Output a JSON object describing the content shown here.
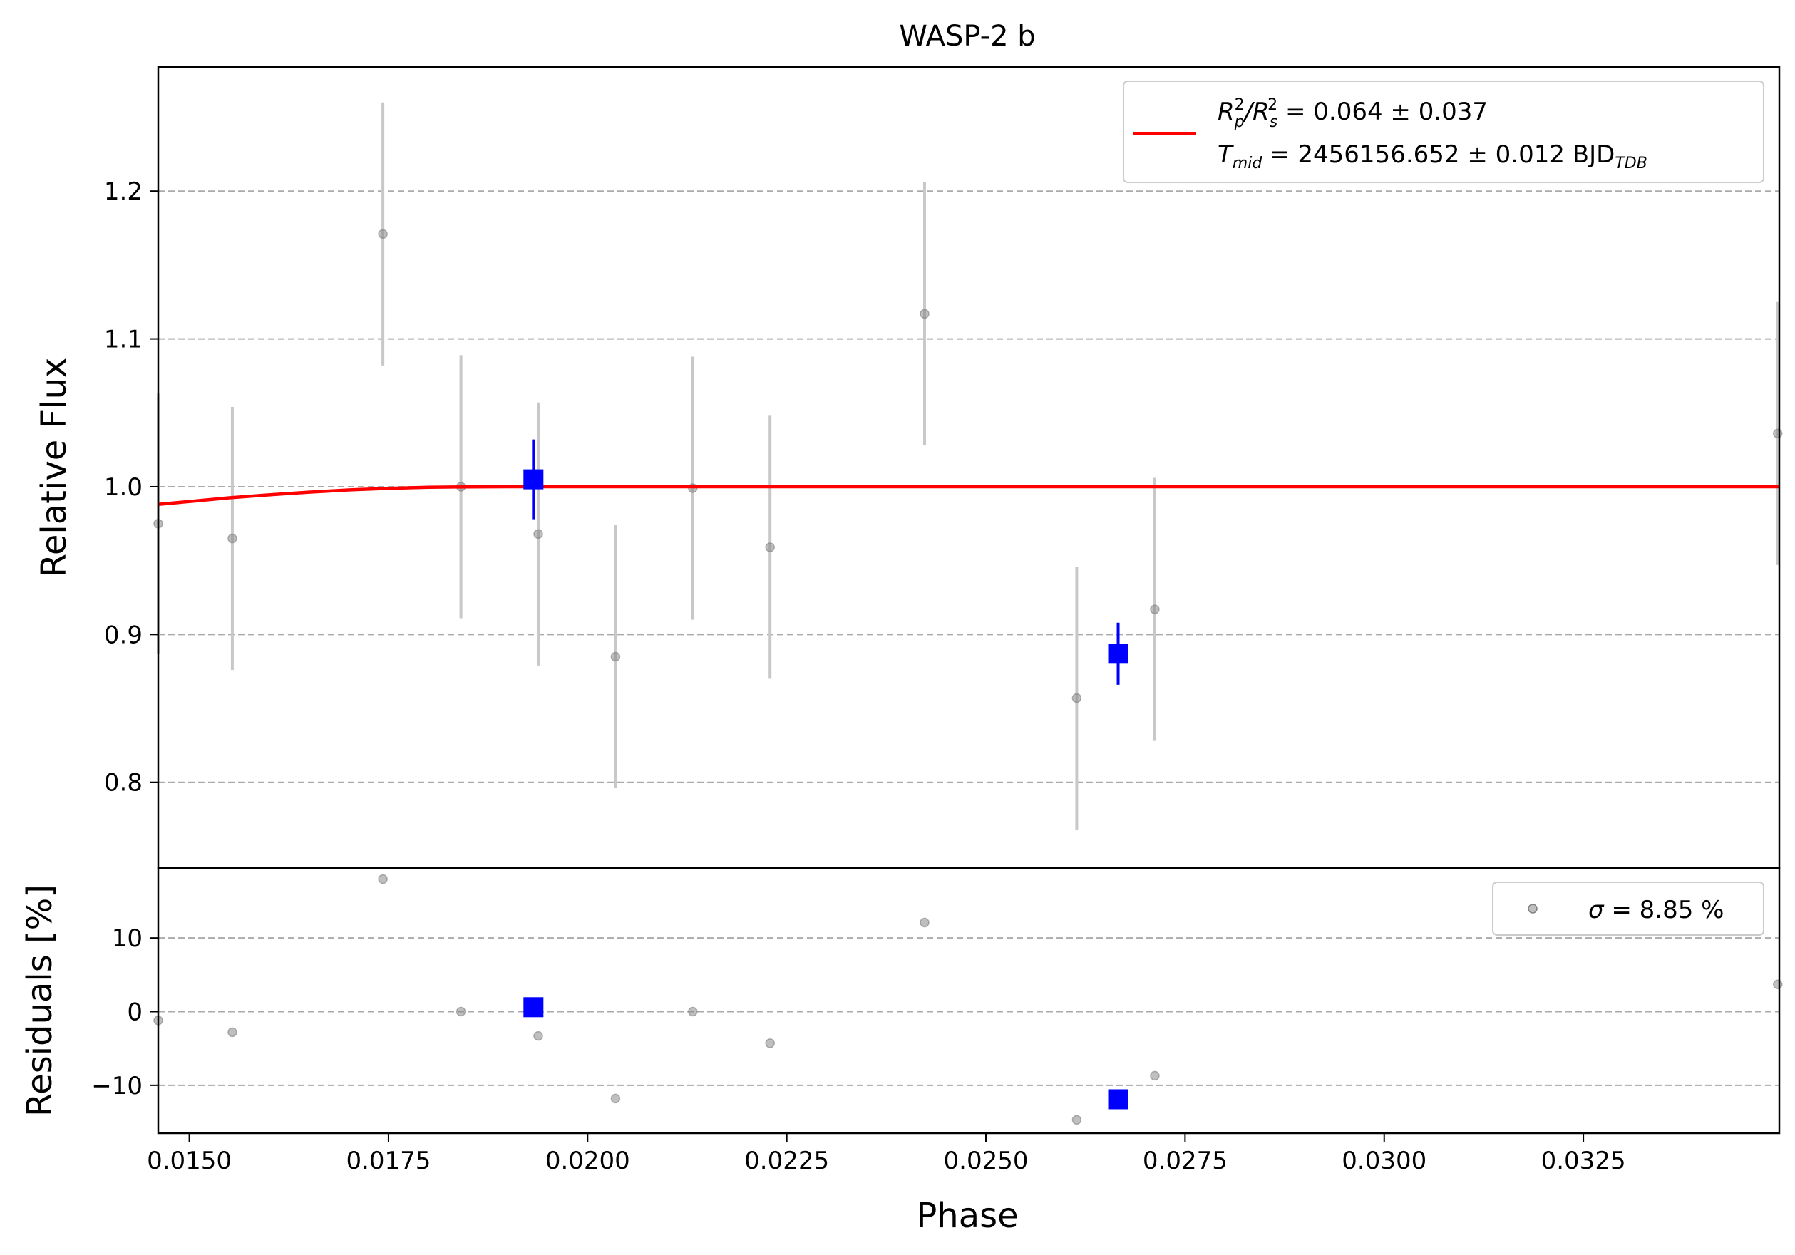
{
  "figure": {
    "title": "WASP-2 b",
    "xlabel": "Phase",
    "colors": {
      "raw_points": "#808080",
      "raw_errorbars": "#c8c8c8",
      "binned_points": "#0000ff",
      "model": "#ff0000",
      "grid": "#aaaaaa"
    }
  },
  "chart_data": [
    {
      "type": "scatter",
      "panel": "main",
      "ylabel": "Relative Flux",
      "xlim": [
        0.01461,
        0.03496
      ],
      "ylim": [
        0.742,
        1.284
      ],
      "xticks": [
        0.015,
        0.0175,
        0.02,
        0.0225,
        0.025,
        0.0275,
        0.03,
        0.0325
      ],
      "xtick_labels": [
        "0.0150",
        "0.0175",
        "0.0200",
        "0.0225",
        "0.0250",
        "0.0275",
        "0.0300",
        "0.0325"
      ],
      "yticks": [
        0.8,
        0.9,
        1.0,
        1.1,
        1.2
      ],
      "ytick_labels": [
        "0.8",
        "0.9",
        "1.0",
        "1.1",
        "1.2"
      ],
      "grid": "horizontal dashed",
      "legend_position": "top-right",
      "legend": {
        "line1_prefix_R": "R",
        "line1_sub_p": "p",
        "line1_sup_p": "2",
        "line1_slash": "/R",
        "line1_sub_s": "s",
        "line1_sup_s": "2",
        "line1_value": " = 0.064 ± 0.037",
        "line2_T": "T",
        "line2_sub": "mid",
        "line2_value": " = 2456156.652 ± 0.012 BJD",
        "line2_unit_sub": "TDB"
      },
      "raw": [
        {
          "x": 0.01461,
          "y": 0.975,
          "err": 0.088
        },
        {
          "x": 0.01554,
          "y": 0.965,
          "err": 0.089
        },
        {
          "x": 0.01743,
          "y": 1.171,
          "err": 0.089
        },
        {
          "x": 0.01841,
          "y": 1.0,
          "err": 0.089
        },
        {
          "x": 0.01938,
          "y": 0.968,
          "err": 0.089
        },
        {
          "x": 0.02035,
          "y": 0.885,
          "err": 0.089
        },
        {
          "x": 0.02132,
          "y": 0.999,
          "err": 0.089
        },
        {
          "x": 0.02229,
          "y": 0.959,
          "err": 0.089
        },
        {
          "x": 0.02423,
          "y": 1.117,
          "err": 0.089
        },
        {
          "x": 0.02614,
          "y": 0.857,
          "err": 0.089
        },
        {
          "x": 0.02712,
          "y": 0.917,
          "err": 0.089
        },
        {
          "x": 0.03494,
          "y": 1.036,
          "err": 0.089
        }
      ],
      "binned": [
        {
          "x": 0.01932,
          "y": 1.005,
          "err": 0.027
        },
        {
          "x": 0.02666,
          "y": 0.887,
          "err": 0.021
        }
      ],
      "model": {
        "x": [
          0.01461,
          0.015,
          0.0155,
          0.016,
          0.0165,
          0.017,
          0.0175,
          0.018,
          0.0185,
          0.019,
          0.0195,
          0.02,
          0.025,
          0.03,
          0.03496
        ],
        "y": [
          0.988,
          0.99,
          0.9925,
          0.9945,
          0.9963,
          0.9978,
          0.9989,
          0.9996,
          0.9999,
          1.0,
          1.0,
          1.0,
          1.0,
          1.0,
          1.0
        ]
      }
    },
    {
      "type": "scatter",
      "panel": "residuals",
      "ylabel": "Residuals [%]",
      "xlim": [
        0.01461,
        0.03496
      ],
      "ylim": [
        -16.5,
        19.5
      ],
      "yticks": [
        -10,
        0,
        10
      ],
      "ytick_labels": [
        "−10",
        "0",
        "10"
      ],
      "grid": "horizontal dashed",
      "legend_position": "top-right",
      "legend": {
        "sigma": "σ",
        "value": " = 8.85 %"
      },
      "raw": [
        {
          "x": 0.01461,
          "y": -1.2
        },
        {
          "x": 0.01554,
          "y": -2.8
        },
        {
          "x": 0.01743,
          "y": 18.0
        },
        {
          "x": 0.01841,
          "y": 0.0
        },
        {
          "x": 0.01938,
          "y": -3.3
        },
        {
          "x": 0.02035,
          "y": -11.8
        },
        {
          "x": 0.02132,
          "y": 0.0
        },
        {
          "x": 0.02229,
          "y": -4.3
        },
        {
          "x": 0.02423,
          "y": 12.1
        },
        {
          "x": 0.02614,
          "y": -14.7
        },
        {
          "x": 0.02712,
          "y": -8.7
        },
        {
          "x": 0.03494,
          "y": 3.7
        }
      ],
      "binned": [
        {
          "x": 0.01932,
          "y": 0.6
        },
        {
          "x": 0.02666,
          "y": -11.9
        }
      ]
    }
  ]
}
